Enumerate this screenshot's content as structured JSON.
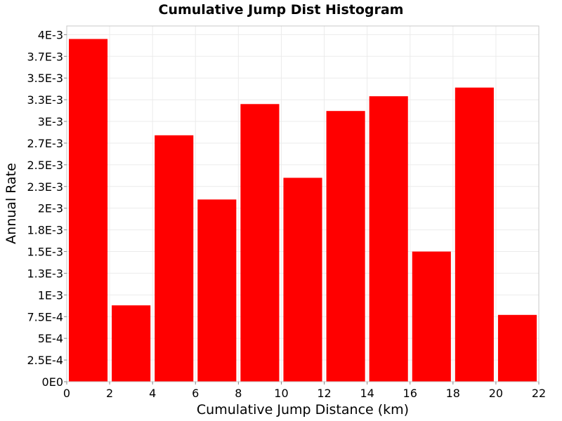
{
  "chart_data": {
    "type": "bar",
    "title": "Cumulative Jump Dist Histogram",
    "xlabel": "Cumulative Jump Distance (km)",
    "ylabel": "Annual Rate",
    "xlim": [
      0,
      22
    ],
    "ylim": [
      0,
      0.0041
    ],
    "x_ticks": [
      0,
      2,
      4,
      6,
      8,
      10,
      12,
      14,
      16,
      18,
      20,
      22
    ],
    "x_tick_labels": [
      "0",
      "2",
      "4",
      "6",
      "8",
      "10",
      "12",
      "14",
      "16",
      "18",
      "20",
      "22"
    ],
    "y_ticks": [
      0,
      0.00025,
      0.0005,
      0.00075,
      0.001,
      0.00125,
      0.0015,
      0.00175,
      0.002,
      0.00225,
      0.0025,
      0.00275,
      0.003,
      0.00325,
      0.0035,
      0.00375,
      0.004
    ],
    "y_tick_labels": [
      "0E0",
      "2.5E-4",
      "5E-4",
      "7.5E-4",
      "1E-3",
      "1.3E-3",
      "1.5E-3",
      "1.8E-3",
      "2E-3",
      "2.3E-3",
      "2.5E-3",
      "2.7E-3",
      "3E-3",
      "3.3E-3",
      "3.5E-3",
      "3.7E-3",
      "4E-3"
    ],
    "grid": true,
    "bar_width": 2,
    "bar_color": "#ff0000",
    "bins": [
      {
        "x_start": 0,
        "x_end": 2,
        "value": 0.00395
      },
      {
        "x_start": 2,
        "x_end": 4,
        "value": 0.00088
      },
      {
        "x_start": 4,
        "x_end": 6,
        "value": 0.00284
      },
      {
        "x_start": 6,
        "x_end": 8,
        "value": 0.0021
      },
      {
        "x_start": 8,
        "x_end": 10,
        "value": 0.0032
      },
      {
        "x_start": 10,
        "x_end": 12,
        "value": 0.00235
      },
      {
        "x_start": 12,
        "x_end": 14,
        "value": 0.00312
      },
      {
        "x_start": 14,
        "x_end": 16,
        "value": 0.00329
      },
      {
        "x_start": 16,
        "x_end": 18,
        "value": 0.0015
      },
      {
        "x_start": 18,
        "x_end": 20,
        "value": 0.00339
      },
      {
        "x_start": 20,
        "x_end": 22,
        "value": 0.00077
      }
    ]
  }
}
